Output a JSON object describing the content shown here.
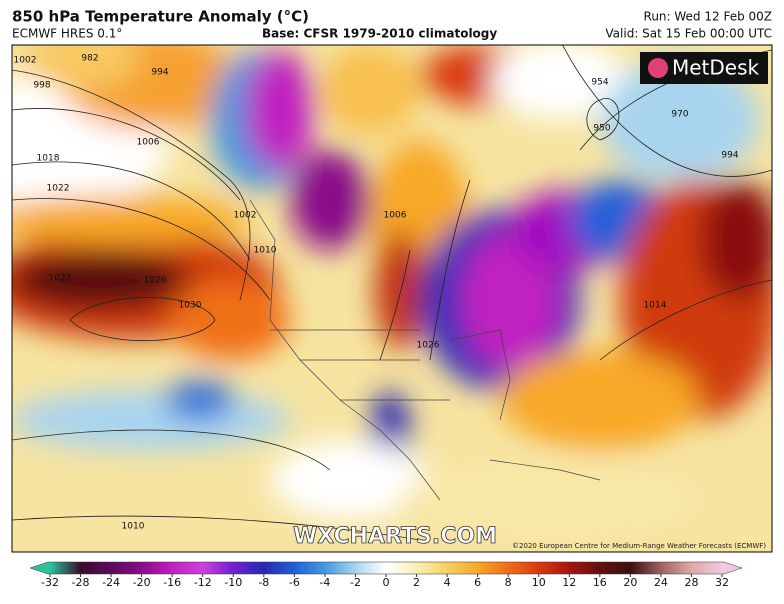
{
  "header": {
    "title": "850 hPa Temperature Anomaly (°C)",
    "model": "ECMWF HRES 0.1°",
    "base": "Base: CFSR 1979-2010 climatology",
    "run": "Run: Wed 12 Feb 00Z",
    "valid": "Valid: Sat 15 Feb 00:00 UTC"
  },
  "logo": "MetDesk",
  "watermark": "WXCHARTS.COM",
  "copyright": "©2020 European Centre for Medium-Range Weather Forecasts (ECMWF)",
  "isobars": [
    "1002",
    "998",
    "994",
    "982",
    "1006",
    "1018",
    "1022",
    "1022",
    "1030",
    "1026",
    "1002",
    "1010",
    "1006",
    "1026",
    "954",
    "950",
    "970",
    "994",
    "1014",
    "1010"
  ],
  "colorbar": {
    "ticks": [
      -32,
      -28,
      -24,
      -20,
      -16,
      -12,
      -10,
      -8,
      -6,
      -4,
      -2,
      0,
      2,
      4,
      6,
      8,
      10,
      12,
      16,
      20,
      24,
      28,
      32
    ],
    "colors": [
      "#2ec49a",
      "#3a0a30",
      "#5c0a5c",
      "#8a0c8a",
      "#c020c0",
      "#d040e0",
      "#7020d0",
      "#2828b0",
      "#2060d8",
      "#4498e0",
      "#a8d4f0",
      "#ffffff",
      "#f8f0b8",
      "#f8d060",
      "#f8a828",
      "#f06c18",
      "#d83a10",
      "#a81410",
      "#641010",
      "#3a1010",
      "#a06060",
      "#e0a8a8",
      "#f0c8e0"
    ]
  }
}
